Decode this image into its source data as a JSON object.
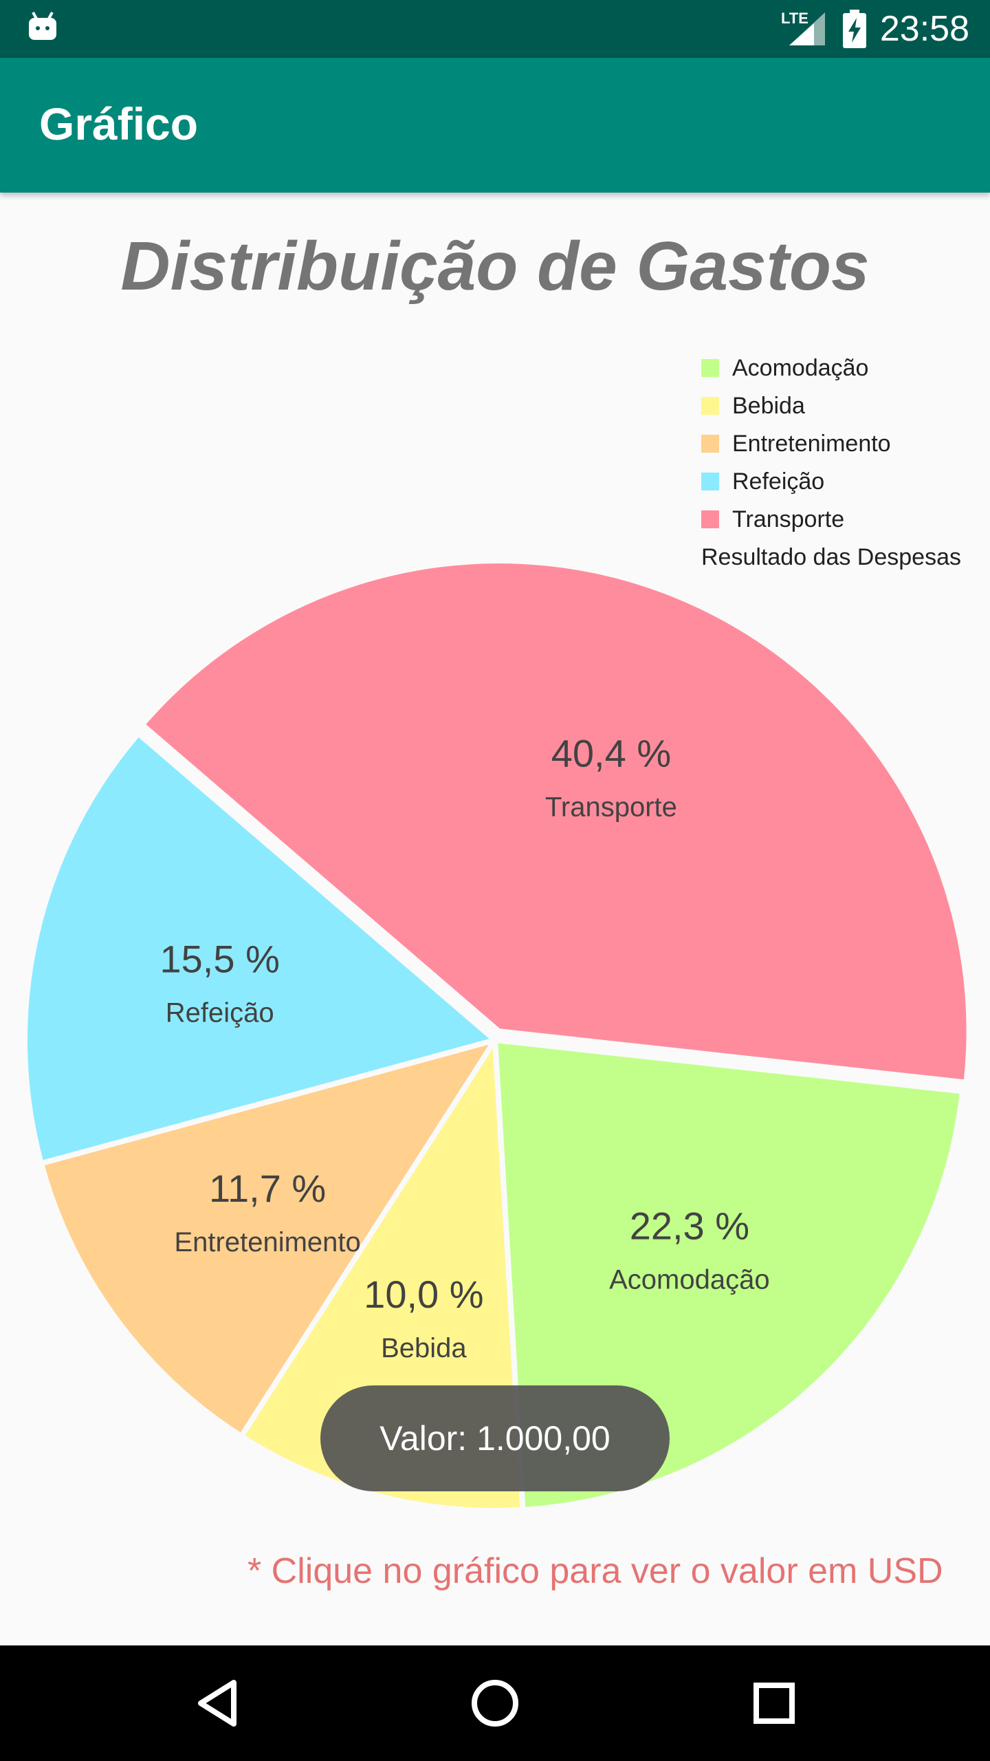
{
  "status_bar": {
    "time": "23:58",
    "network": "LTE"
  },
  "app_bar": {
    "title": "Gráfico"
  },
  "chart_data": {
    "type": "pie",
    "title": "Distribuição de Gastos",
    "legend_position": "top-right",
    "legend_title": "Resultado das Despesas",
    "categories": [
      "Acomodação",
      "Bebida",
      "Entretenimento",
      "Refeição",
      "Transporte"
    ],
    "values": [
      22.3,
      10.0,
      11.7,
      15.5,
      40.4
    ],
    "value_labels": [
      "22,3 %",
      "10,0 %",
      "11,7 %",
      "15,5 %",
      "40,4 %"
    ],
    "colors": [
      "#c1ff8a",
      "#fff68f",
      "#ffd08e",
      "#8ceaff",
      "#ff8c9d"
    ]
  },
  "toast": {
    "text": "Valor: 1.000,00"
  },
  "footnote": "* Clique no gráfico para ver o valor em USD",
  "icons": {
    "status_left": "android-debug-icon",
    "signal": "signal-icon",
    "battery": "battery-charging-icon",
    "nav_back": "back-icon",
    "nav_home": "home-icon",
    "nav_recents": "recents-icon"
  }
}
